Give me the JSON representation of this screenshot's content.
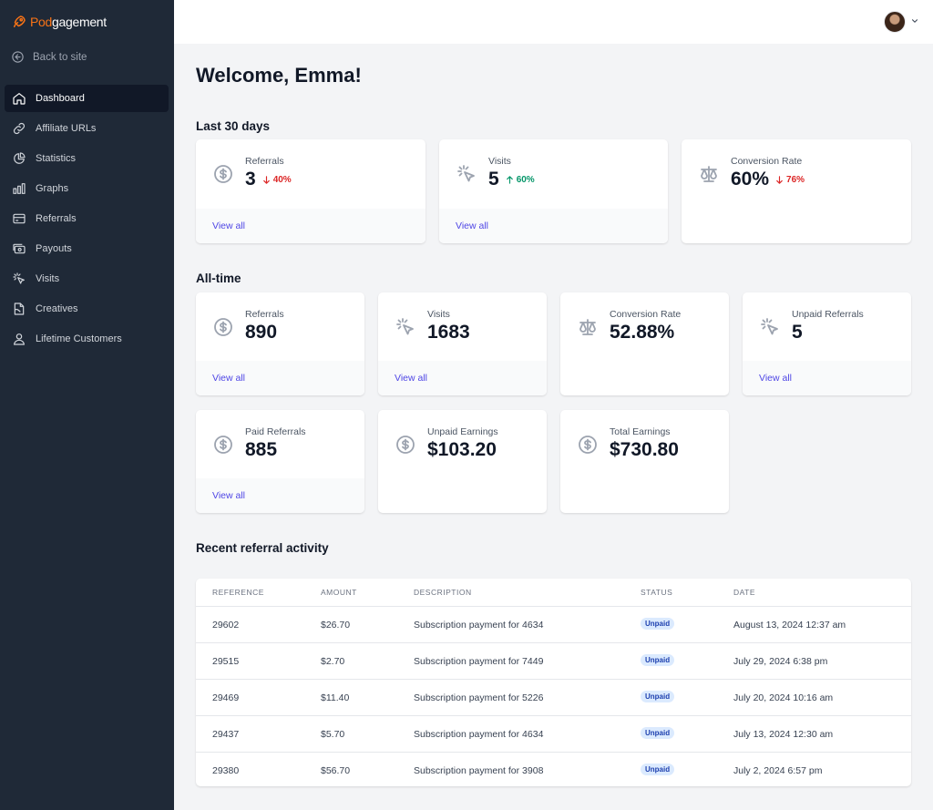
{
  "app": {
    "logo_accent": "Pod",
    "logo_rest": "gagement"
  },
  "sidebar": {
    "back_label": "Back to site",
    "items": [
      {
        "label": "Dashboard",
        "icon": "home-icon",
        "active": true
      },
      {
        "label": "Affiliate URLs",
        "icon": "link-icon"
      },
      {
        "label": "Statistics",
        "icon": "pie-chart-icon"
      },
      {
        "label": "Graphs",
        "icon": "bar-chart-icon"
      },
      {
        "label": "Referrals",
        "icon": "credit-card-icon"
      },
      {
        "label": "Payouts",
        "icon": "cash-icon"
      },
      {
        "label": "Visits",
        "icon": "cursor-click-icon"
      },
      {
        "label": "Creatives",
        "icon": "document-icon"
      },
      {
        "label": "Lifetime Customers",
        "icon": "users-icon"
      }
    ]
  },
  "header": {
    "welcome": "Welcome, Emma!"
  },
  "last30": {
    "title": "Last 30 days",
    "cards": [
      {
        "label": "Referrals",
        "value": "3",
        "change": "40%",
        "direction": "down",
        "link": "View all",
        "icon": "dollar-icon"
      },
      {
        "label": "Visits",
        "value": "5",
        "change": "60%",
        "direction": "up",
        "link": "View all",
        "icon": "cursor-click-icon"
      },
      {
        "label": "Conversion Rate",
        "value": "60%",
        "change": "76%",
        "direction": "down",
        "icon": "scale-icon"
      }
    ]
  },
  "alltime": {
    "title": "All-time",
    "cards": [
      {
        "label": "Referrals",
        "value": "890",
        "link": "View all",
        "icon": "dollar-icon"
      },
      {
        "label": "Visits",
        "value": "1683",
        "link": "View all",
        "icon": "cursor-click-icon"
      },
      {
        "label": "Conversion Rate",
        "value": "52.88%",
        "icon": "scale-icon"
      },
      {
        "label": "Unpaid Referrals",
        "value": "5",
        "link": "View all",
        "icon": "cursor-click-icon"
      },
      {
        "label": "Paid Referrals",
        "value": "885",
        "link": "View all",
        "icon": "dollar-icon"
      },
      {
        "label": "Unpaid Earnings",
        "value": "$103.20",
        "icon": "dollar-icon"
      },
      {
        "label": "Total Earnings",
        "value": "$730.80",
        "icon": "dollar-icon"
      }
    ]
  },
  "recent": {
    "title": "Recent referral activity",
    "columns": [
      "REFERENCE",
      "AMOUNT",
      "DESCRIPTION",
      "STATUS",
      "DATE"
    ],
    "rows": [
      {
        "reference": "29602",
        "amount": "$26.70",
        "description": "Subscription payment for 4634",
        "status": "Unpaid",
        "date": "August 13, 2024 12:37 am"
      },
      {
        "reference": "29515",
        "amount": "$2.70",
        "description": "Subscription payment for 7449",
        "status": "Unpaid",
        "date": "July 29, 2024 6:38 pm"
      },
      {
        "reference": "29469",
        "amount": "$11.40",
        "description": "Subscription payment for 5226",
        "status": "Unpaid",
        "date": "July 20, 2024 10:16 am"
      },
      {
        "reference": "29437",
        "amount": "$5.70",
        "description": "Subscription payment for 4634",
        "status": "Unpaid",
        "date": "July 13, 2024 12:30 am"
      },
      {
        "reference": "29380",
        "amount": "$56.70",
        "description": "Subscription payment for 3908",
        "status": "Unpaid",
        "date": "July 2, 2024 6:57 pm"
      }
    ]
  },
  "colors": {
    "sidebar_bg": "#1f2937",
    "accent": "#4f46e5",
    "brand": "#f97316",
    "down": "#dc2626",
    "up": "#059669",
    "badge_bg": "#dbeafe"
  }
}
